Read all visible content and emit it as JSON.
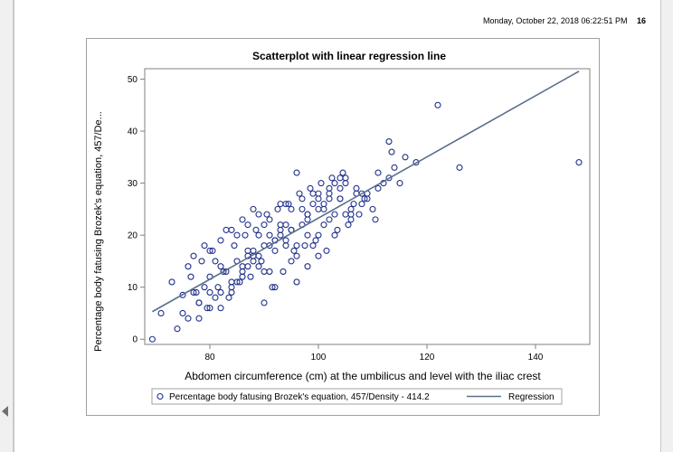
{
  "header": {
    "timestamp": "Monday, October 22, 2018 06:22:51 PM",
    "page_number": "16"
  },
  "chart_data": {
    "type": "scatter",
    "title": "Scatterplot with linear regression line",
    "xlabel": "Abdomen circumference (cm) at the umbilicus and level with the iliac crest",
    "ylabel": "Percentage body fatusing Brozek's equation, 457/De...",
    "xlim": [
      68,
      150
    ],
    "ylim": [
      -1,
      52
    ],
    "xticks": [
      80,
      100,
      120,
      140
    ],
    "yticks": [
      0,
      10,
      20,
      30,
      40,
      50
    ],
    "grid": false,
    "legend_position": "bottom",
    "colors": {
      "points": "#1f2f8a",
      "regression": "#5a6f8c"
    },
    "series": [
      {
        "name": "Percentage body fatusing Brozek's equation, 457/Density - 414.2",
        "type": "scatter",
        "x": [
          69.4,
          71,
          74,
          75,
          76,
          77,
          78,
          79,
          80,
          81,
          82,
          83,
          84,
          85,
          86,
          87,
          88,
          89,
          90,
          91,
          92,
          93,
          94,
          95,
          96,
          97,
          98,
          99,
          100,
          101,
          102,
          103,
          104,
          105,
          106,
          107,
          108,
          109,
          110,
          111,
          113,
          114,
          116,
          118,
          122,
          126,
          148,
          73,
          75,
          76.5,
          77.5,
          78.5,
          79.5,
          80.5,
          81.5,
          82.5,
          83.5,
          84.5,
          85.5,
          86.5,
          87.5,
          88.5,
          89.5,
          90.5,
          91.5,
          92.5,
          93.5,
          94.5,
          95.5,
          96.5,
          97.5,
          98.5,
          99.5,
          100.5,
          101.5,
          102.5,
          103.5,
          104.5,
          105.5,
          106.5,
          107.5,
          108.5,
          110.5,
          112,
          113.5,
          115,
          76,
          78,
          80,
          82,
          84,
          86,
          88,
          90,
          92,
          94,
          96,
          98,
          100,
          102,
          104,
          106,
          108,
          77,
          79,
          81,
          83,
          85,
          87,
          89,
          91,
          93,
          95,
          97,
          99,
          101,
          103,
          105,
          84,
          86,
          88,
          90,
          92,
          94,
          96,
          98,
          100,
          102,
          104,
          80,
          82,
          84,
          86,
          88,
          90,
          92,
          94,
          96,
          98,
          100,
          87,
          89,
          91,
          93,
          95,
          97,
          99,
          101,
          103,
          105,
          107,
          109,
          111,
          113,
          78,
          80,
          82,
          85,
          87,
          89,
          91,
          93,
          95,
          98,
          100,
          102,
          104,
          106
        ],
        "y": [
          0,
          5,
          2,
          8.5,
          14,
          9,
          7,
          10,
          12,
          8,
          14,
          13,
          10,
          15,
          13,
          17,
          16,
          14,
          18,
          20,
          17,
          22,
          19,
          21,
          16,
          25,
          24,
          26,
          20,
          22,
          28,
          24,
          27,
          30,
          25,
          28,
          26,
          27,
          25,
          29,
          38,
          33,
          35,
          34,
          45,
          33,
          34,
          11,
          5,
          12,
          9,
          15,
          6,
          17,
          10,
          13,
          8,
          18,
          11,
          20,
          12,
          21,
          15,
          24,
          10,
          25,
          13,
          26,
          17,
          28,
          18,
          29,
          19,
          30,
          17,
          31,
          21,
          32,
          22,
          26,
          24,
          27,
          23,
          30,
          36,
          30,
          4,
          7,
          9,
          6,
          11,
          14,
          17,
          13,
          19,
          22,
          18,
          23,
          25,
          27,
          29,
          24,
          28,
          16,
          18,
          15,
          21,
          20,
          22,
          24,
          18,
          26,
          21,
          27,
          28,
          25,
          30,
          31,
          9,
          12,
          15,
          7,
          10,
          18,
          11,
          20,
          16,
          23,
          27,
          17,
          19,
          21,
          23,
          25,
          22,
          19,
          26,
          32,
          14,
          28,
          14,
          16,
          13,
          20,
          15,
          22,
          18,
          26,
          20,
          24,
          29,
          28,
          32,
          31,
          4,
          6,
          9,
          11,
          16,
          20,
          23,
          21,
          25,
          24,
          27,
          29,
          31,
          23
        ]
      },
      {
        "name": "Regression",
        "type": "line",
        "x": [
          69.4,
          148
        ],
        "y": [
          5.3,
          51.5
        ]
      }
    ]
  }
}
